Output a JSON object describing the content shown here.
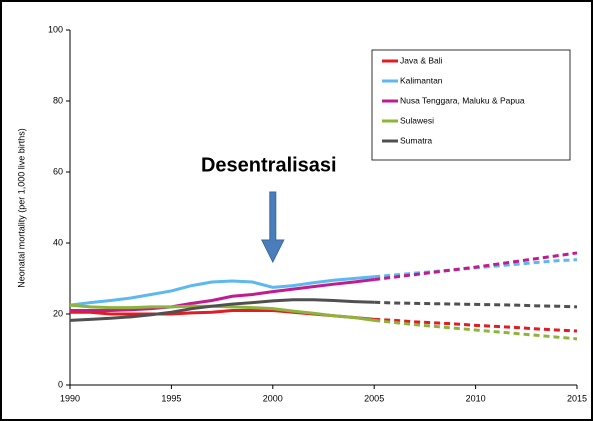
{
  "chart_data": {
    "type": "line",
    "y_label": "Neonatal mortality (per 1,000 live births)",
    "annotation": "Desentralisasi",
    "annotation_x": 2000,
    "dash_after": 2005,
    "x": [
      1990,
      1991,
      1992,
      1993,
      1994,
      1995,
      1996,
      1997,
      1998,
      1999,
      2000,
      2001,
      2002,
      2003,
      2004,
      2005,
      2006,
      2007,
      2008,
      2009,
      2010,
      2011,
      2012,
      2013,
      2014,
      2015
    ],
    "series": [
      {
        "name": "Java & Bali",
        "color": "#e31b23",
        "values": [
          20.5,
          20.5,
          20,
          20,
          20,
          20,
          20.3,
          20.5,
          21,
          21,
          21,
          20.5,
          20,
          19.5,
          19,
          18.5,
          18.2,
          17.8,
          17.5,
          17.2,
          16.8,
          16.5,
          16.2,
          15.8,
          15.5,
          15.2
        ]
      },
      {
        "name": "Kalimantan",
        "color": "#5cb8ef",
        "values": [
          22.5,
          23.2,
          23.8,
          24.5,
          25.5,
          26.5,
          28,
          29,
          29.3,
          29,
          27.5,
          28,
          28.8,
          29.5,
          30,
          30.5,
          31,
          31.5,
          32,
          32.5,
          33,
          33.5,
          34,
          34.5,
          35,
          35.3
        ]
      },
      {
        "name": "Nusa Tenggara, Maluku & Papua",
        "color": "#c21a90",
        "values": [
          21,
          21,
          21,
          21.2,
          21.5,
          22,
          23,
          23.8,
          25,
          25.5,
          26.3,
          27,
          27.7,
          28.4,
          29,
          29.7,
          30.4,
          31.1,
          31.8,
          32.5,
          33.2,
          34,
          34.8,
          35.6,
          36.4,
          37.2
        ]
      },
      {
        "name": "Sulawesi",
        "color": "#8db43a",
        "values": [
          22.5,
          22,
          21.8,
          21.8,
          22,
          22,
          22.2,
          22.2,
          22,
          21.8,
          21.5,
          20.8,
          20.2,
          19.5,
          19,
          18.2,
          17.6,
          17,
          16.5,
          16,
          15.5,
          15,
          14.5,
          14,
          13.5,
          13
        ]
      },
      {
        "name": "Sumatra",
        "color": "#505050",
        "values": [
          18.2,
          18.5,
          18.8,
          19.2,
          19.8,
          20.5,
          21.5,
          22.2,
          22.8,
          23.2,
          23.7,
          24,
          24,
          23.8,
          23.5,
          23.3,
          23.1,
          23,
          22.9,
          22.8,
          22.7,
          22.6,
          22.5,
          22.3,
          22.2,
          22
        ]
      }
    ],
    "xlim": [
      1990,
      2015
    ],
    "xticks": [
      1990,
      1995,
      2000,
      2005,
      2010,
      2015
    ],
    "ylim": [
      0,
      100
    ],
    "yticks": [
      0,
      20,
      40,
      60,
      80,
      100
    ],
    "grid": false,
    "legend": "upper right"
  }
}
